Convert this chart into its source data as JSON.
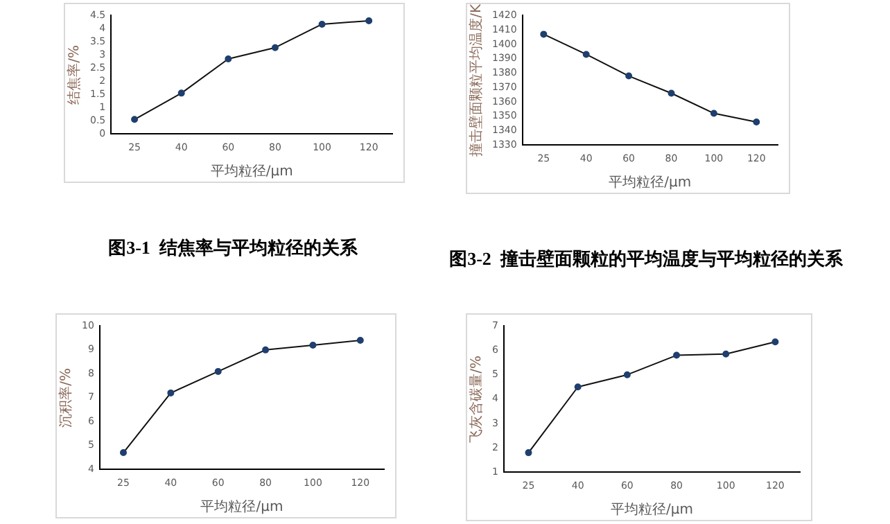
{
  "chart_data": [
    {
      "type": "line",
      "categories": [
        "25",
        "40",
        "60",
        "80",
        "100",
        "120"
      ],
      "series": [
        {
          "color": "#1f3f6e",
          "values": [
            0.55,
            1.55,
            2.85,
            3.28,
            4.17,
            4.3
          ]
        }
      ],
      "xlabel": "平均粒径/μm",
      "ylabel": "结焦率/%",
      "ylim": [
        0,
        4.5
      ],
      "yticks": [
        0,
        0.5,
        1,
        1.5,
        2,
        2.5,
        3,
        3.5,
        4,
        4.5
      ],
      "marker": "circle",
      "grid": false,
      "legend": false,
      "annotations": [
        "图3-1  结焦率与平均粒径的关系"
      ]
    },
    {
      "type": "line",
      "categories": [
        "25",
        "40",
        "60",
        "80",
        "100",
        "120"
      ],
      "series": [
        {
          "color": "#1f3f6e",
          "values": [
            1407,
            1393,
            1378,
            1366,
            1352,
            1346
          ]
        }
      ],
      "xlabel": "平均粒径/μm",
      "ylabel": "撞击壁面颗粒平均温度/K",
      "ylim": [
        1330,
        1420
      ],
      "yticks": [
        1330,
        1340,
        1350,
        1360,
        1370,
        1380,
        1390,
        1400,
        1410,
        1420
      ],
      "marker": "circle",
      "grid": false,
      "legend": false,
      "annotations": [
        "图3-2  撞击壁面颗粒的平均温度与平均粒径的关系"
      ]
    },
    {
      "type": "line",
      "categories": [
        "25",
        "40",
        "60",
        "80",
        "100",
        "120"
      ],
      "series": [
        {
          "color": "#1f3f6e",
          "values": [
            4.7,
            7.2,
            8.1,
            9.0,
            9.2,
            9.4
          ]
        }
      ],
      "xlabel": "平均粒径/μm",
      "ylabel": "沉积率/%",
      "ylim": [
        4,
        10
      ],
      "yticks": [
        4,
        5,
        6,
        7,
        8,
        9,
        10
      ],
      "marker": "circle",
      "grid": false,
      "legend": false
    },
    {
      "type": "line",
      "categories": [
        "25",
        "40",
        "60",
        "80",
        "100",
        "120"
      ],
      "series": [
        {
          "color": "#1f3f6e",
          "values": [
            1.8,
            4.5,
            5.0,
            5.8,
            5.85,
            6.35
          ]
        }
      ],
      "xlabel": "平均粒径/μm",
      "ylabel": "飞灰含碳量/%",
      "ylim": [
        1,
        7
      ],
      "yticks": [
        1,
        2,
        3,
        4,
        5,
        6,
        7
      ],
      "marker": "circle",
      "grid": false,
      "legend": false
    }
  ]
}
